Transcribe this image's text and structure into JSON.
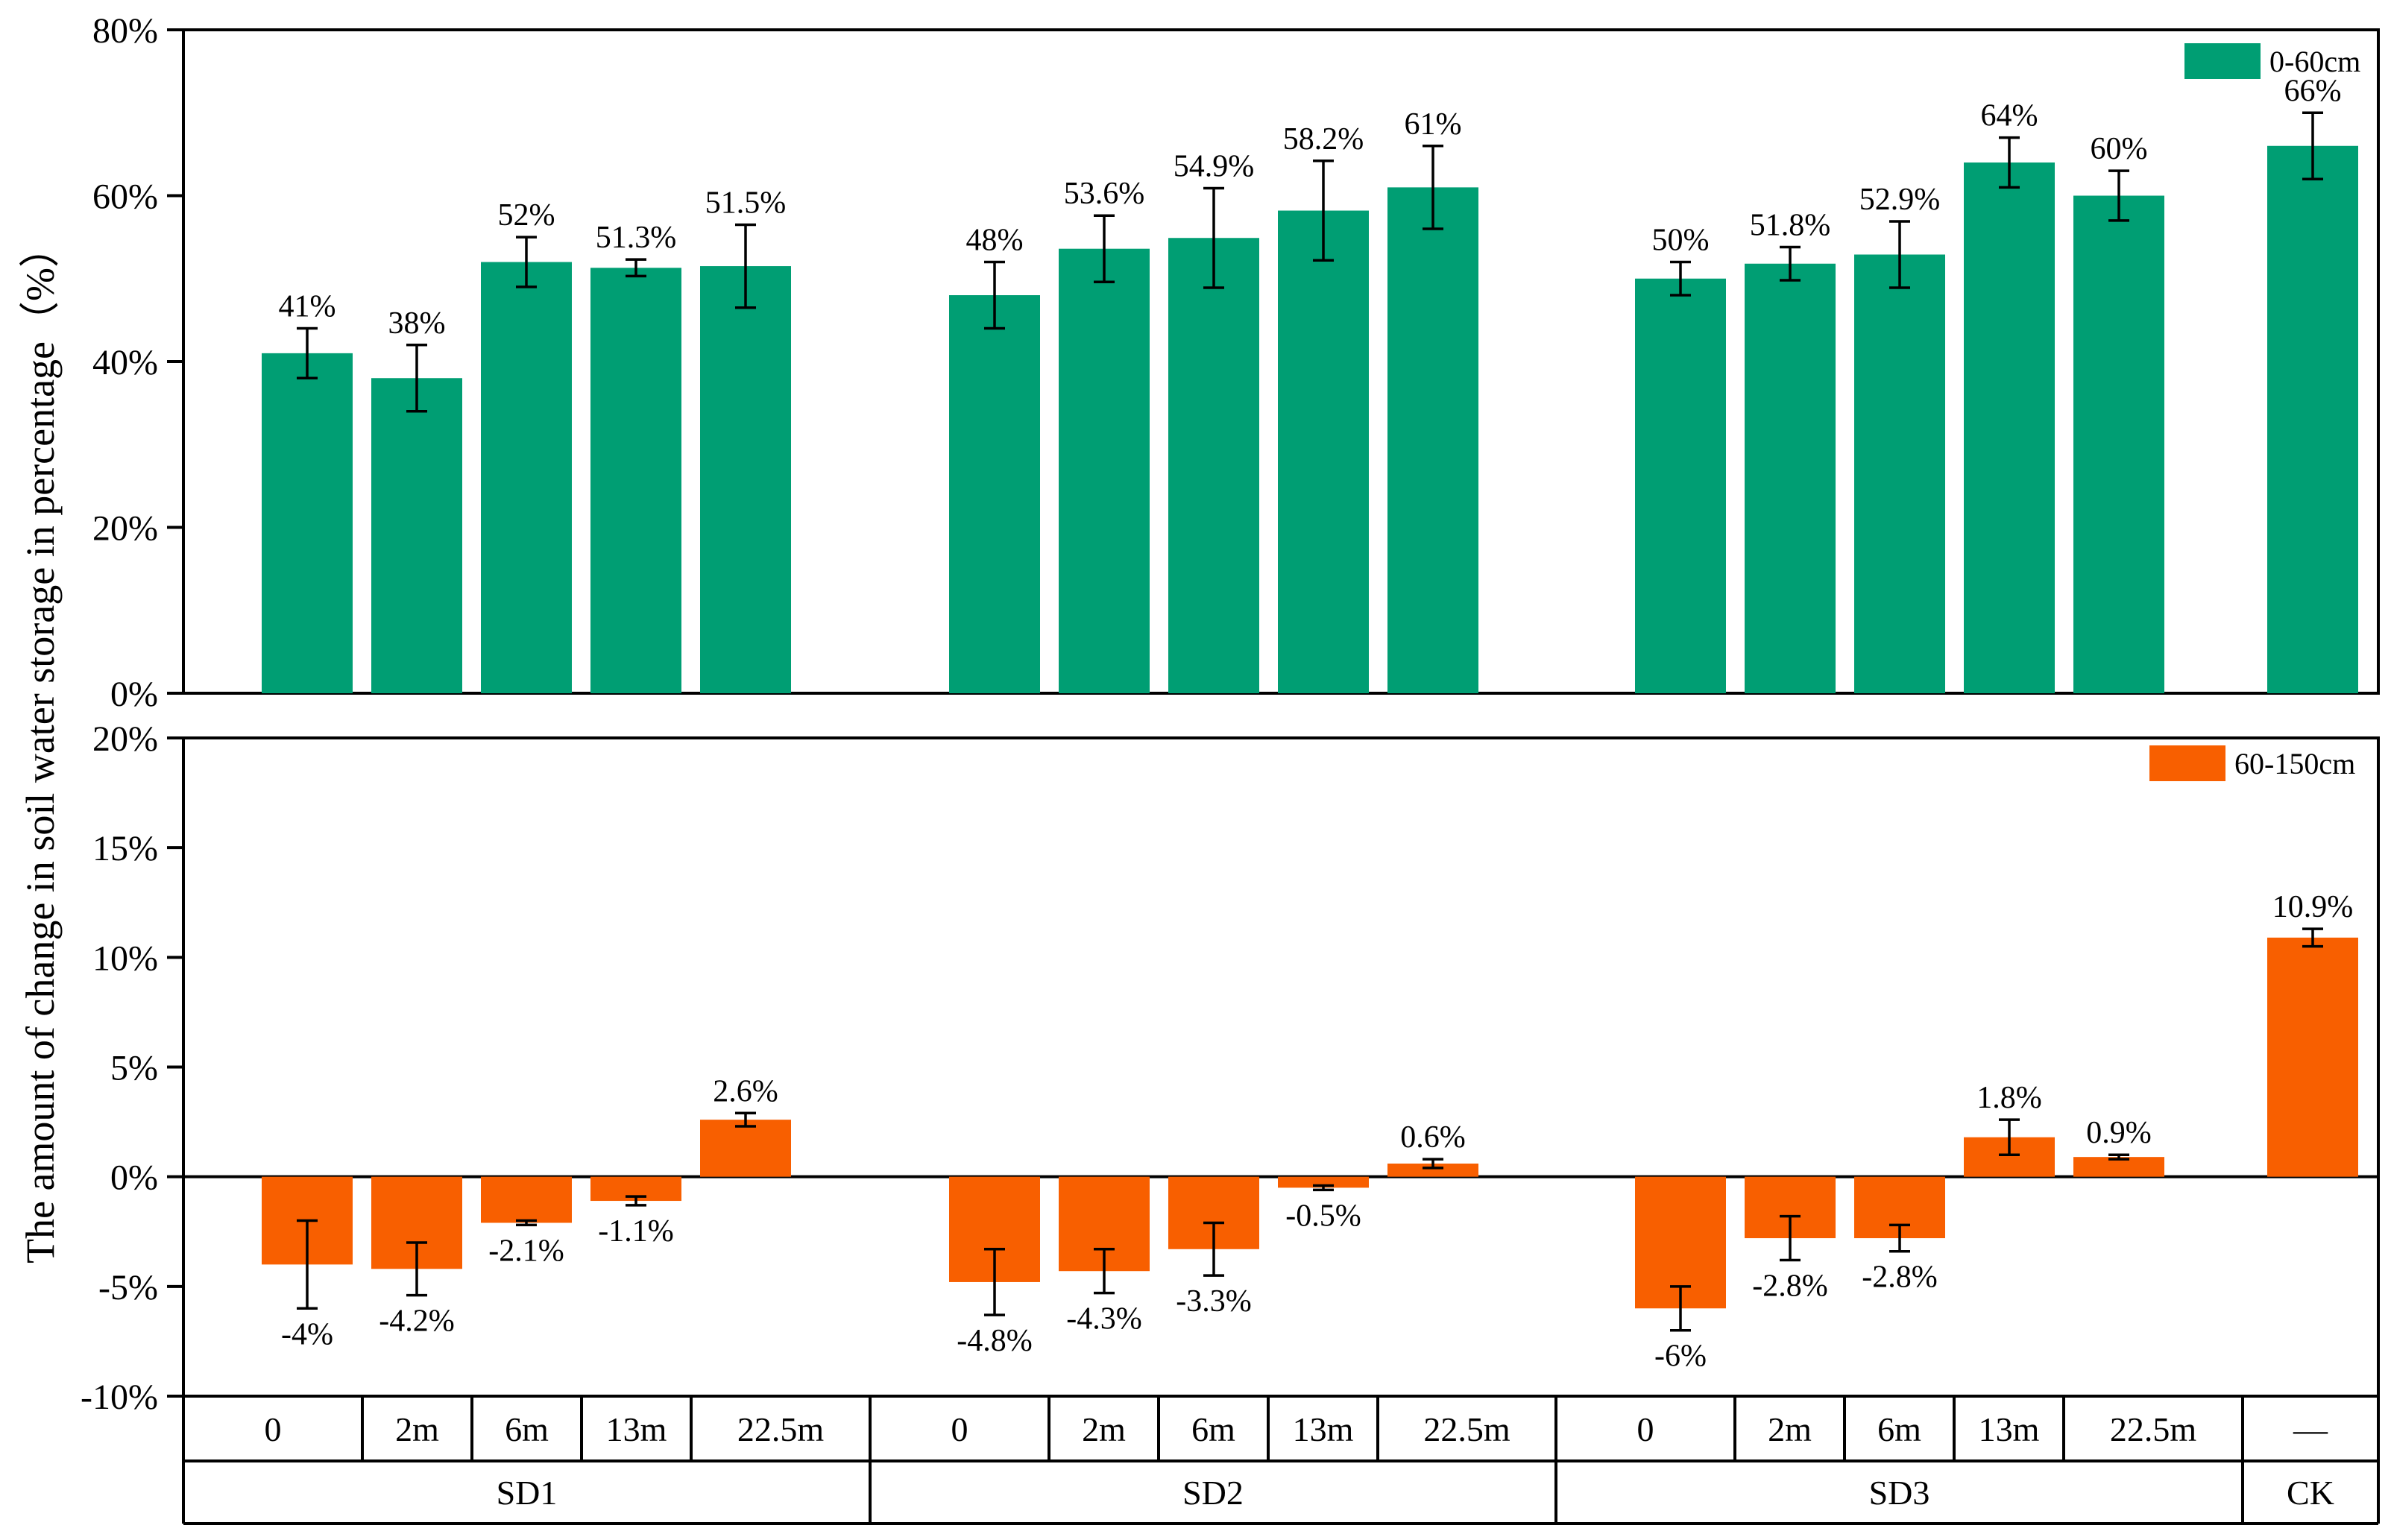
{
  "chart_data": [
    {
      "type": "bar",
      "panel": "top",
      "legend": "0-60cm",
      "legend_position": "top-right",
      "color": "#009E73",
      "ylim": [
        0,
        80
      ],
      "yticks": [
        "0%",
        "20%",
        "40%",
        "60%",
        "80%"
      ],
      "values": [
        41,
        38,
        52,
        51.3,
        51.5,
        48,
        53.6,
        54.9,
        58.2,
        61,
        50,
        51.8,
        52.9,
        64,
        60,
        66
      ],
      "errors": [
        3,
        4,
        3,
        1,
        5,
        4,
        4,
        6,
        6,
        5,
        2,
        2,
        4,
        3,
        3,
        4
      ],
      "labels": [
        "41%",
        "38%",
        "52%",
        "51.3%",
        "51.5%",
        "48%",
        "53.6%",
        "54.9%",
        "58.2%",
        "61%",
        "50%",
        "51.8%",
        "52.9%",
        "64%",
        "60%",
        "66%"
      ]
    },
    {
      "type": "bar",
      "panel": "bottom",
      "legend": "60-150cm",
      "legend_position": "top-right",
      "color": "#F85F00",
      "ylim": [
        -10,
        20
      ],
      "yticks": [
        "-10%",
        "-5%",
        "0%",
        "5%",
        "10%",
        "15%",
        "20%"
      ],
      "values": [
        -4,
        -4.2,
        -2.1,
        -1.1,
        2.6,
        -4.8,
        -4.3,
        -3.3,
        -0.5,
        0.6,
        -6,
        -2.8,
        -2.8,
        1.8,
        0.9,
        10.9
      ],
      "errors": [
        2,
        1.2,
        0.1,
        0.2,
        0.3,
        1.5,
        1,
        1.2,
        0.1,
        0.2,
        1,
        1,
        0.6,
        0.8,
        0.1,
        0.4
      ],
      "labels": [
        "-4%",
        "-4.2%",
        "-2.1%",
        "-1.1%",
        "2.6%",
        "-4.8%",
        "-4.3%",
        "-3.3%",
        "-0.5%",
        "0.6%",
        "-6%",
        "-2.8%",
        "-2.8%",
        "1.8%",
        "0.9%",
        "10.9%"
      ]
    }
  ],
  "ylabel": "The amount of change in soil water storage in percentage（%）",
  "categories": [
    "0",
    "2m",
    "6m",
    "13m",
    "22.5m",
    "0",
    "2m",
    "6m",
    "13m",
    "22.5m",
    "0",
    "2m",
    "6m",
    "13m",
    "22.5m",
    "—"
  ],
  "groups": [
    "SD1",
    "SD2",
    "SD3",
    "CK"
  ]
}
